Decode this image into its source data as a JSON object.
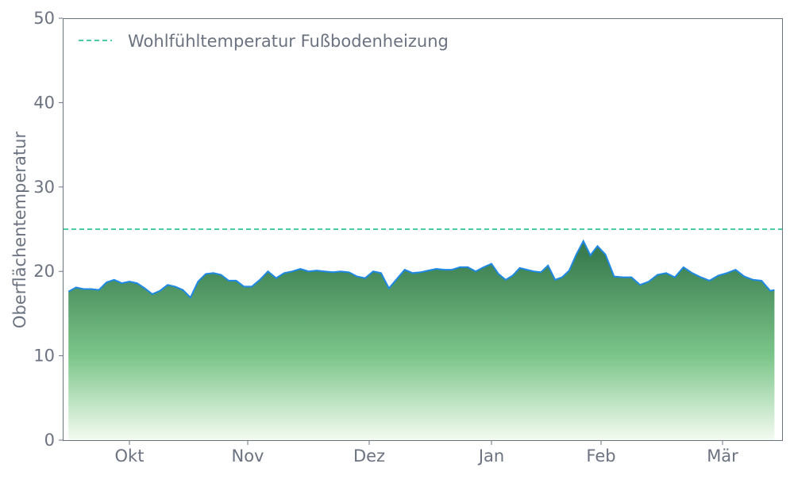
{
  "chart_data": {
    "type": "area",
    "title": "",
    "xlabel": "",
    "ylabel": "Oberflächentemperatur",
    "ylim": [
      0,
      50
    ],
    "yticks": [
      0,
      10,
      20,
      30,
      40,
      50
    ],
    "xticks": [
      {
        "date": "10-01",
        "label": "Okt"
      },
      {
        "date": "11-01",
        "label": "Nov"
      },
      {
        "date": "12-01",
        "label": "Dez"
      },
      {
        "date": "01-01",
        "label": "Jan"
      },
      {
        "date": "02-01",
        "label": "Feb"
      },
      {
        "date": "03-01",
        "label": "Mär"
      }
    ],
    "grid": false,
    "legend_placement": "top-left",
    "reference_line": {
      "name": "Wohlfühltemperatur Fußbodenheizung",
      "y": 25,
      "style": "dashed",
      "color": "#10b981"
    },
    "series": [
      {
        "line_color": "#1e88e5",
        "fill_top_color": "#3a7d50",
        "fill_bottom_color": "#f4fbf1",
        "x": [
          "09-15",
          "09-17",
          "09-19",
          "09-21",
          "09-23",
          "09-25",
          "09-27",
          "09-29",
          "10-01",
          "10-03",
          "10-05",
          "10-07",
          "10-09",
          "10-11",
          "10-13",
          "10-15",
          "10-17",
          "10-19",
          "10-21",
          "10-23",
          "10-25",
          "10-27",
          "10-29",
          "10-31",
          "11-02",
          "11-04",
          "11-06",
          "11-08",
          "11-10",
          "11-12",
          "11-14",
          "11-16",
          "11-18",
          "11-20",
          "11-22",
          "11-24",
          "11-26",
          "11-28",
          "11-30",
          "12-02",
          "12-04",
          "12-06",
          "12-08",
          "12-10",
          "12-12",
          "12-14",
          "12-16",
          "12-18",
          "12-20",
          "12-22",
          "12-24",
          "12-26",
          "12-28",
          "12-30",
          "01-01",
          "01-03",
          "01-05",
          "01-07",
          "01-09",
          "01-11",
          "01-13",
          "01-15",
          "01-17",
          "01-19",
          "01-21",
          "01-23",
          "01-25",
          "01-27",
          "01-29",
          "01-31",
          "02-02",
          "02-04",
          "02-06",
          "02-08",
          "02-10",
          "02-12",
          "02-14",
          "02-16",
          "02-18",
          "02-20",
          "02-22",
          "02-24",
          "02-26",
          "02-28",
          "03-02",
          "03-04",
          "03-06",
          "03-08",
          "03-10",
          "03-12",
          "03-13"
        ],
        "y": [
          17.6,
          18.1,
          17.9,
          17.9,
          17.8,
          18.7,
          19.0,
          18.6,
          18.8,
          18.6,
          18.0,
          17.3,
          17.7,
          18.4,
          18.2,
          17.8,
          16.9,
          18.8,
          19.7,
          19.8,
          19.6,
          18.9,
          18.9,
          18.2,
          18.2,
          19.0,
          20.0,
          19.2,
          19.8,
          20.0,
          20.3,
          20.0,
          20.1,
          20.0,
          19.9,
          20.0,
          19.9,
          19.4,
          19.2,
          20.0,
          19.8,
          18.0,
          19.1,
          20.2,
          19.8,
          19.9,
          20.1,
          20.3,
          20.2,
          20.2,
          20.5,
          20.5,
          20.0,
          20.5,
          20.9,
          19.7,
          19.0,
          19.5,
          20.4,
          20.2,
          20.0,
          19.9,
          20.7,
          19.0,
          19.3,
          20.1,
          22.0,
          23.6,
          21.9,
          23.0,
          22.0,
          19.4,
          19.3,
          19.3,
          18.4,
          18.8,
          19.6,
          19.8,
          19.3,
          20.5,
          19.8,
          19.3,
          18.9,
          19.5,
          19.8,
          20.2,
          19.4,
          19.0,
          18.9,
          17.7,
          17.8
        ]
      }
    ]
  }
}
